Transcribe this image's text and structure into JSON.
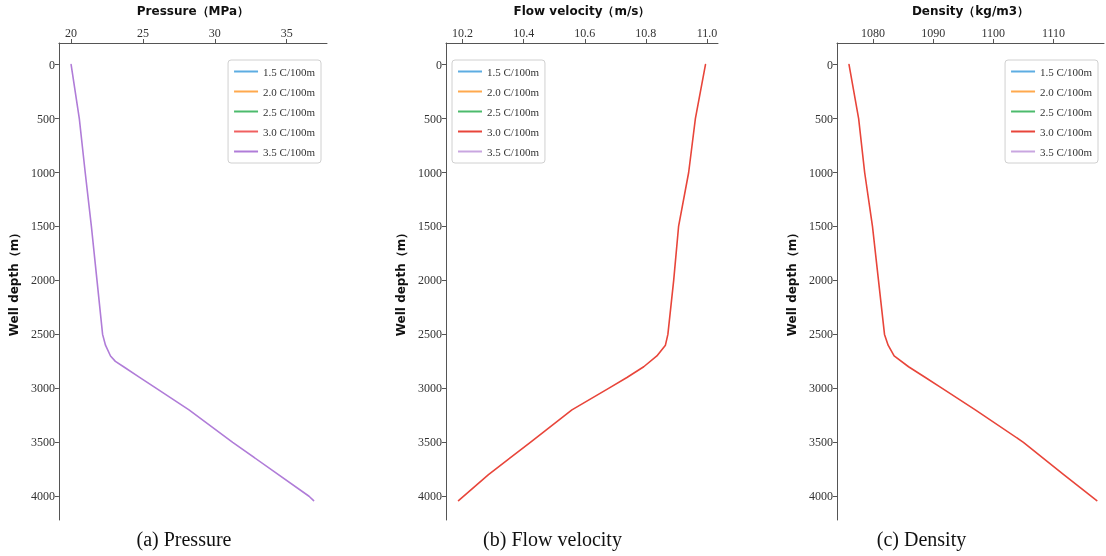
{
  "chart_data": [
    {
      "type": "line",
      "title": "(a) Pressure",
      "xlabel": "Pressure（MPa）",
      "ylabel": "Well depth（m）",
      "xlim": [
        19.15,
        37.8
      ],
      "xticks": [
        20,
        25,
        30,
        35
      ],
      "ylim": [
        4220,
        -200
      ],
      "yticks": [
        0,
        500,
        1000,
        1500,
        2000,
        2500,
        3000,
        3500,
        4000
      ],
      "grid": false,
      "legend": "top right",
      "marker": "none",
      "line_style": "solid",
      "series": [
        {
          "name": "1.5 C/100m",
          "color": "#5dade2"
        },
        {
          "name": "2.0 C/100m",
          "color": "#ffa94d"
        },
        {
          "name": "2.5 C/100m",
          "color": "#4cbb6c"
        },
        {
          "name": "3.0 C/100m",
          "color": "#f06060"
        },
        {
          "name": "3.5 C/100m",
          "color": "#b07cd8",
          "x": [
            20.0,
            20.57,
            20.98,
            21.41,
            21.8,
            22.19,
            22.39,
            22.74,
            23.08,
            23.65,
            24.79,
            25.93,
            28.2,
            31.24,
            36.55,
            36.87
          ],
          "values": [
            0,
            500,
            1000,
            1500,
            2000,
            2500,
            2600,
            2700,
            2750,
            2800,
            2900,
            3000,
            3200,
            3500,
            4000,
            4040
          ]
        }
      ]
    },
    {
      "type": "line",
      "title": "(b) Flow velocity",
      "xlabel": "Flow velocity（m/s）",
      "ylabel": "Well depth（m）",
      "xlim": [
        10.146,
        11.036
      ],
      "xticks": [
        {
          "value": 10.2,
          "label": "10.2"
        },
        {
          "value": 10.4,
          "label": "10.4"
        },
        {
          "value": 10.6,
          "label": "10.6"
        },
        {
          "value": 10.8,
          "label": "10.8"
        },
        {
          "value": 11,
          "label": "11.0"
        }
      ],
      "ylim": [
        4220,
        -200
      ],
      "yticks": [
        0,
        500,
        1000,
        1500,
        2000,
        2500,
        3000,
        3500,
        4000
      ],
      "grid": false,
      "legend": "top left",
      "marker": "none",
      "line_style": "solid",
      "series": [
        {
          "name": "1.5 C/100m",
          "color": "#5dade2"
        },
        {
          "name": "2.0 C/100m",
          "color": "#ffa94d"
        },
        {
          "name": "2.5 C/100m",
          "color": "#4cbb6c"
        },
        {
          "name": "3.0 C/100m",
          "color": "#e8453a",
          "x": [
            10.995,
            10.962,
            10.94,
            10.907,
            10.891,
            10.872,
            10.864,
            10.836,
            10.793,
            10.738,
            10.678,
            10.558,
            10.422,
            10.285,
            10.187
          ],
          "values": [
            0,
            500,
            1000,
            1500,
            2000,
            2500,
            2600,
            2700,
            2800,
            2900,
            3000,
            3200,
            3500,
            3800,
            4040
          ]
        },
        {
          "name": "3.5 C/100m",
          "color": "#c9a6e0"
        }
      ]
    },
    {
      "type": "line",
      "title": "(c) Density",
      "xlabel": "Density（kg/m3）",
      "ylabel": "Well depth（m）",
      "xlim": [
        1074.0,
        1118.4
      ],
      "xticks": [
        1080,
        1090,
        1100,
        1110
      ],
      "ylim": [
        4220,
        -200
      ],
      "yticks": [
        0,
        500,
        1000,
        1500,
        2000,
        2500,
        3000,
        3500,
        4000
      ],
      "grid": false,
      "legend": "top right",
      "marker": "none",
      "line_style": "solid",
      "series": [
        {
          "name": "1.5 C/100m",
          "color": "#5dade2"
        },
        {
          "name": "2.0 C/100m",
          "color": "#ffa94d"
        },
        {
          "name": "2.5 C/100m",
          "color": "#4cbb6c"
        },
        {
          "name": "3.0 C/100m",
          "color": "#e8453a",
          "x": [
            1076.0,
            1077.6,
            1078.6,
            1079.9,
            1080.9,
            1081.9,
            1082.5,
            1083.5,
            1085.9,
            1088.7,
            1091.5,
            1097.0,
            1105.0,
            1111.7,
            1117.2
          ],
          "values": [
            0,
            500,
            1000,
            1500,
            2000,
            2500,
            2600,
            2700,
            2800,
            2900,
            3000,
            3200,
            3500,
            3800,
            4040
          ]
        },
        {
          "name": "3.5 C/100m",
          "color": "#c9a6e0"
        }
      ]
    }
  ]
}
